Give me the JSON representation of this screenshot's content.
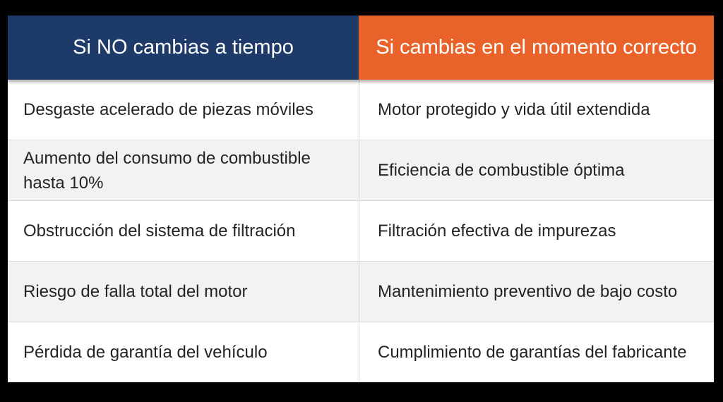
{
  "table": {
    "headers": [
      {
        "label": "Si NO cambias a tiempo"
      },
      {
        "label": "Si cambias en el momento correcto"
      }
    ],
    "rows": [
      {
        "left": "Desgaste acelerado de piezas móviles",
        "right": "Motor protegido y vida útil extendida"
      },
      {
        "left": "Aumento del consumo de combustible hasta 10%",
        "right": "Eficiencia de combustible óptima"
      },
      {
        "left": "Obstrucción del sistema de filtración",
        "right": "Filtración efectiva de impurezas"
      },
      {
        "left": "Riesgo de falla total del motor",
        "right": "Mantenimiento preventivo de bajo costo"
      },
      {
        "left": "Pérdida de garantía del vehículo",
        "right": "Cumplimiento de garantías del fabricante"
      }
    ]
  },
  "colors": {
    "background": "#000000",
    "header_left_bg": "#1E3A68",
    "header_right_bg": "#E8622A",
    "header_text": "#FFFFFF",
    "row_bg": "#FFFFFF",
    "row_alt_bg": "#F2F2F2",
    "divider": "#D9D9D9",
    "body_text": "#242424"
  }
}
